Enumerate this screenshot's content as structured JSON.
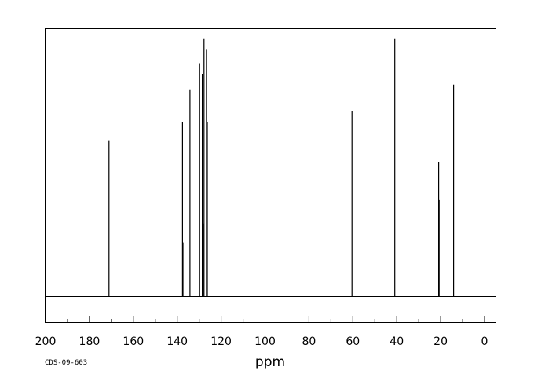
{
  "chart_data": {
    "type": "line",
    "title": "",
    "xlabel": "ppm",
    "ylabel": "",
    "xlim": [
      200,
      -5
    ],
    "x_reversed": true,
    "ylim": [
      0,
      1
    ],
    "grid": false,
    "x_ticks": [
      200,
      180,
      160,
      140,
      120,
      100,
      80,
      60,
      40,
      20,
      0
    ],
    "tick_labels": [
      "200",
      "180",
      "160",
      "140",
      "120",
      "100",
      "80",
      "60",
      "40",
      "20",
      "0"
    ],
    "peaks": [
      {
        "ppm": 171.1,
        "intensity": 0.58
      },
      {
        "ppm": 137.6,
        "intensity": 0.65
      },
      {
        "ppm": 137.4,
        "intensity": 0.2
      },
      {
        "ppm": 134.2,
        "intensity": 0.77
      },
      {
        "ppm": 129.8,
        "intensity": 0.87
      },
      {
        "ppm": 128.6,
        "intensity": 0.83
      },
      {
        "ppm": 128.2,
        "intensity": 0.27
      },
      {
        "ppm": 127.8,
        "intensity": 0.96
      },
      {
        "ppm": 126.7,
        "intensity": 0.92
      },
      {
        "ppm": 126.3,
        "intensity": 0.65
      },
      {
        "ppm": 60.4,
        "intensity": 0.69
      },
      {
        "ppm": 40.9,
        "intensity": 0.96
      },
      {
        "ppm": 20.9,
        "intensity": 0.5
      },
      {
        "ppm": 20.7,
        "intensity": 0.36
      },
      {
        "ppm": 14.1,
        "intensity": 0.79
      }
    ]
  },
  "code_label": "CDS-09-603"
}
